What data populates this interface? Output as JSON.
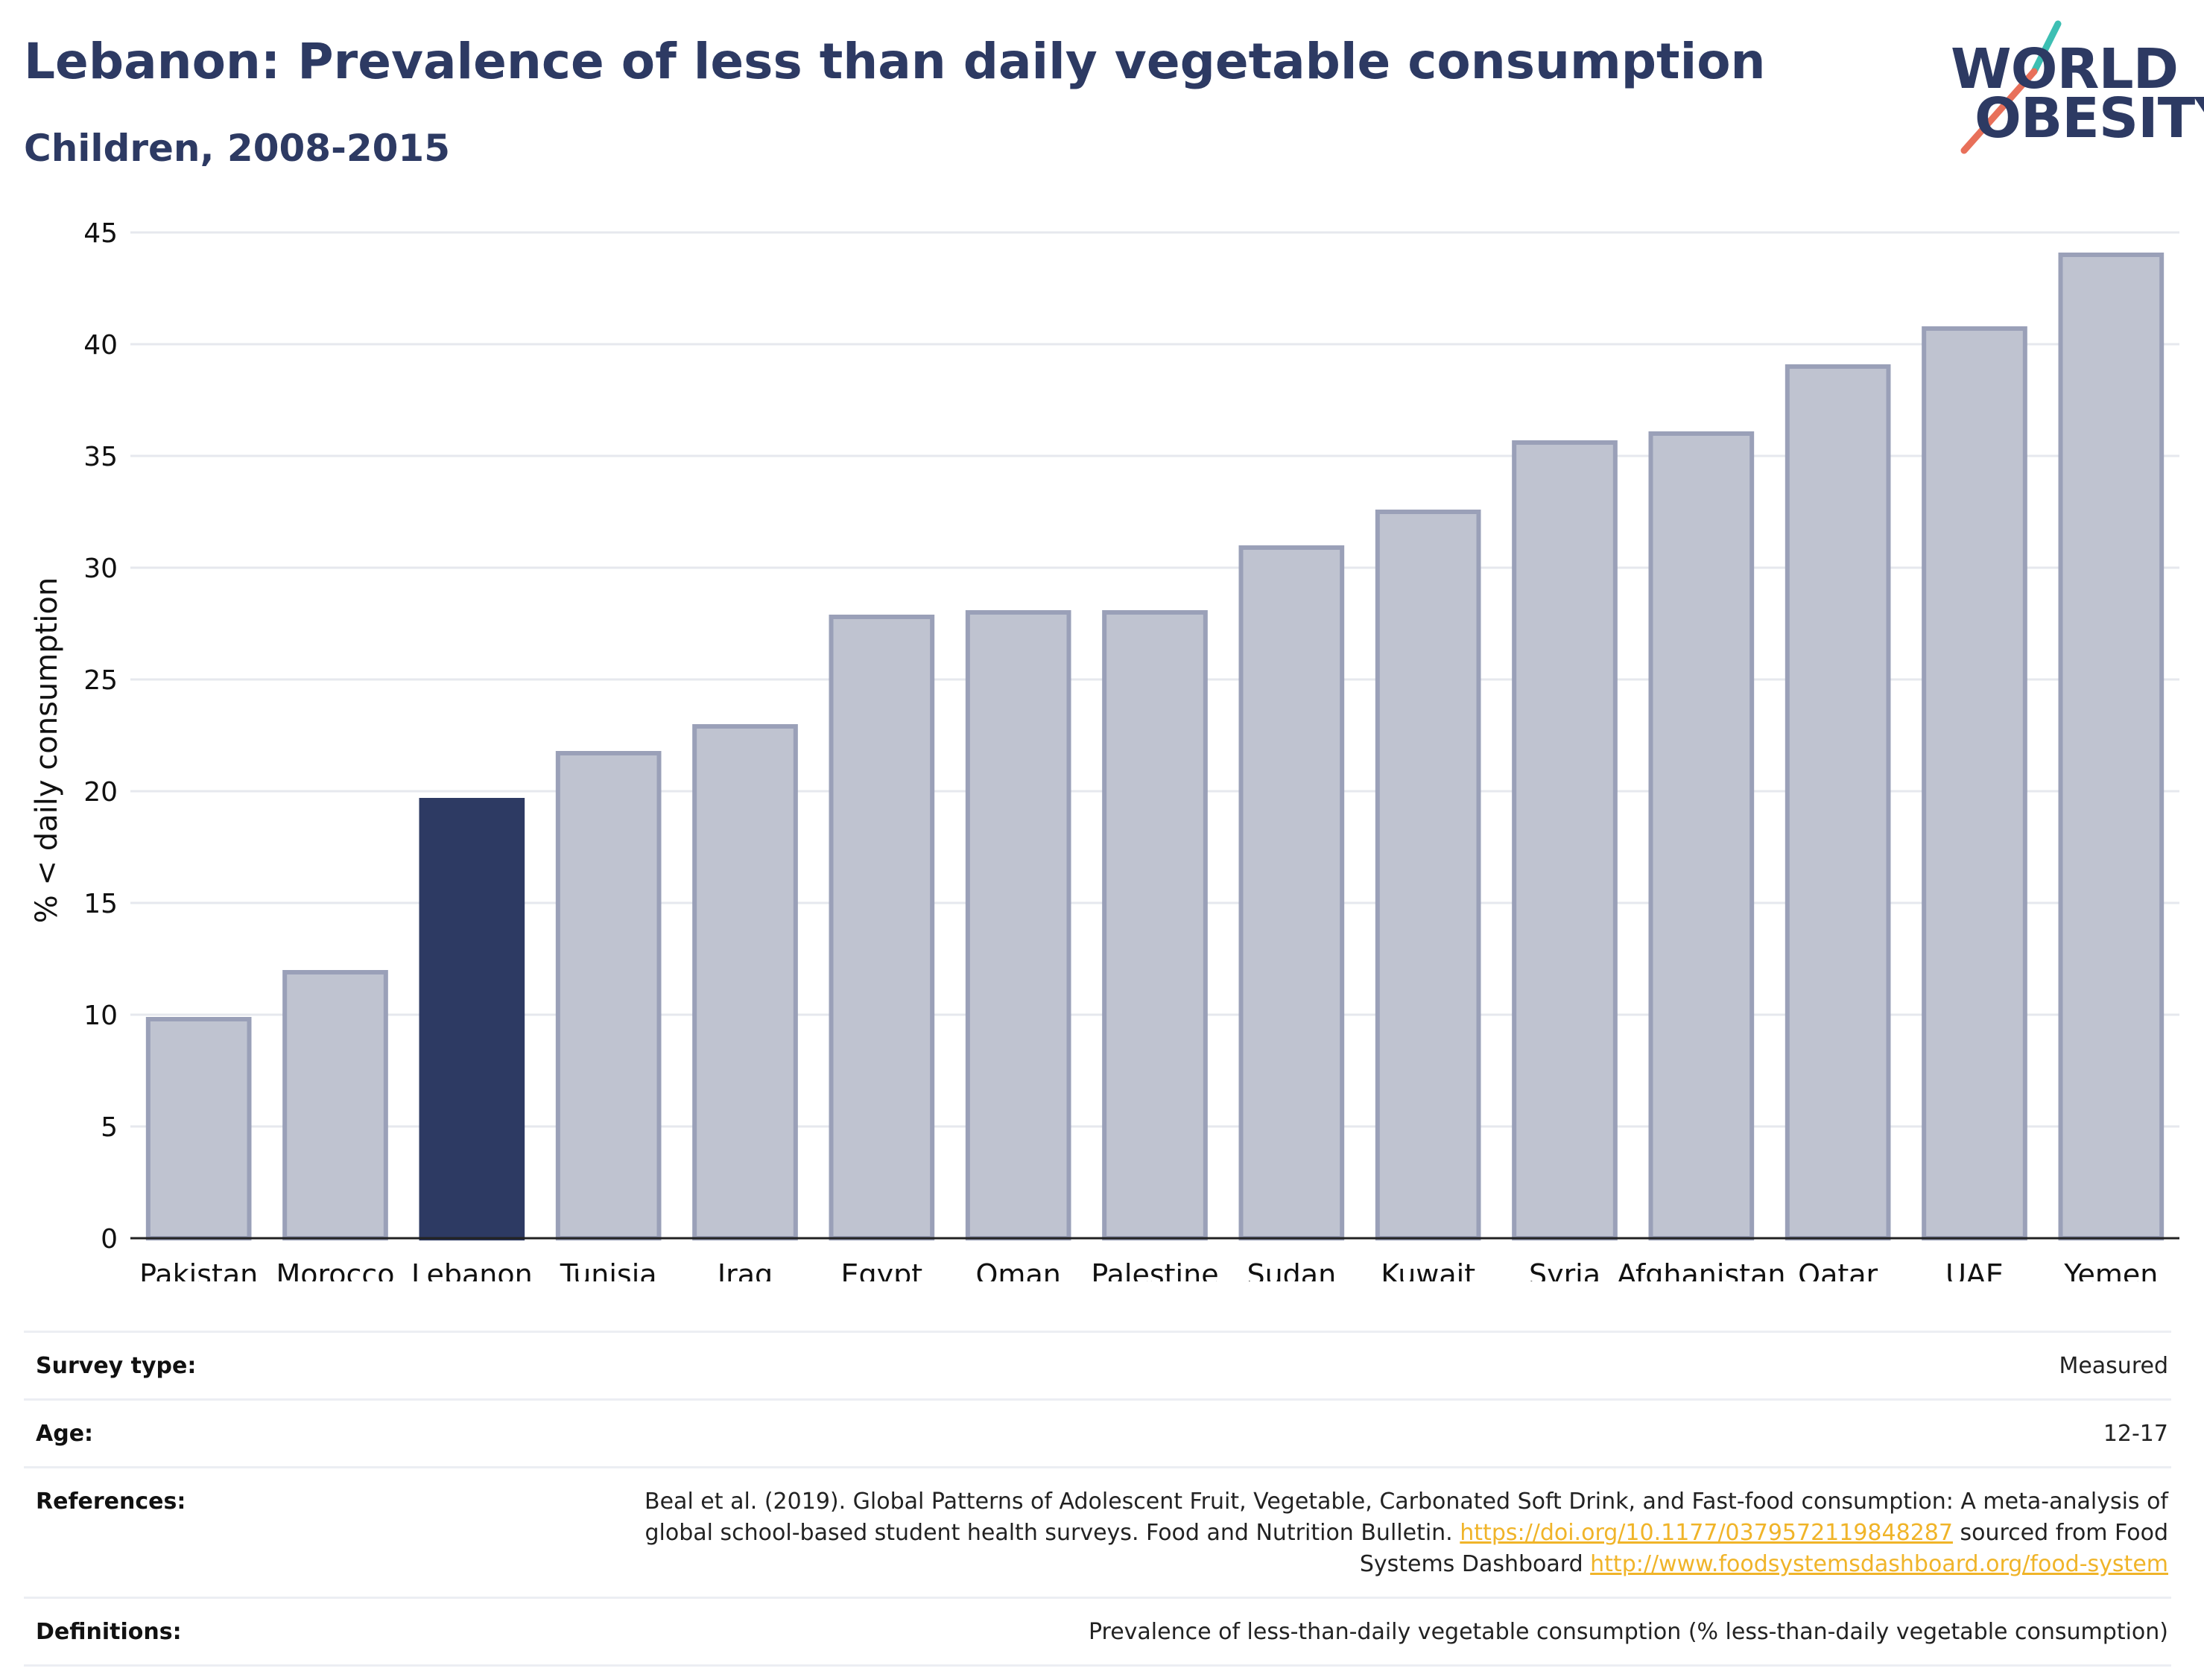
{
  "header": {
    "title": "Lebanon: Prevalence of less than daily vegetable consumption",
    "subtitle": "Children, 2008-2015"
  },
  "logo": {
    "line1": "WORLD",
    "line2": "OBESITY",
    "colors": {
      "text": "#2d3a63",
      "slash_top": "#3dbfb3",
      "slash_bottom": "#e8705a"
    }
  },
  "chart_data": {
    "type": "bar",
    "categories": [
      "Pakistan",
      "Morocco",
      "Lebanon",
      "Tunisia",
      "Iraq",
      "Egypt",
      "Oman",
      "Palestine",
      "Sudan",
      "Kuwait",
      "Syria",
      "Afghanistan",
      "Qatar",
      "UAE",
      "Yemen"
    ],
    "values": [
      9.8,
      11.9,
      19.6,
      21.7,
      22.9,
      27.8,
      28.0,
      28.0,
      30.9,
      32.5,
      35.6,
      36.0,
      39.0,
      40.7,
      44.0
    ],
    "highlight": "Lebanon",
    "ylabel": "% < daily consumption",
    "xlabel": "",
    "ylim": [
      0,
      45
    ],
    "yticks": [
      0,
      5,
      10,
      15,
      20,
      25,
      30,
      35,
      40,
      45
    ],
    "grid": true,
    "colors": {
      "bar": "#bfc3d0",
      "bar_edge": "#9aa0b8",
      "highlight": "#2d3a63",
      "grid": "#e6e8ee"
    }
  },
  "meta": {
    "rows": [
      {
        "key": "Survey type:",
        "value": "Measured"
      },
      {
        "key": "Age:",
        "value": "12-17"
      },
      {
        "key": "References:",
        "value_parts": {
          "text1": "Beal et al. (2019). Global Patterns of Adolescent Fruit, Vegetable, Carbonated Soft Drink, and Fast-food consumption: A meta-analysis of global school-based student health surveys. Food and Nutrition Bulletin.",
          "link1": "https://doi.org/10.1177/0379572119848287",
          "text2": "sourced from Food Systems Dashboard",
          "link2": "http://www.foodsystemsdashboard.org/food-system"
        }
      },
      {
        "key": "Definitions:",
        "value": "Prevalence of less-than-daily vegetable consumption (% less-than-daily vegetable consumption)"
      }
    ],
    "link_color": "#f0b429"
  }
}
